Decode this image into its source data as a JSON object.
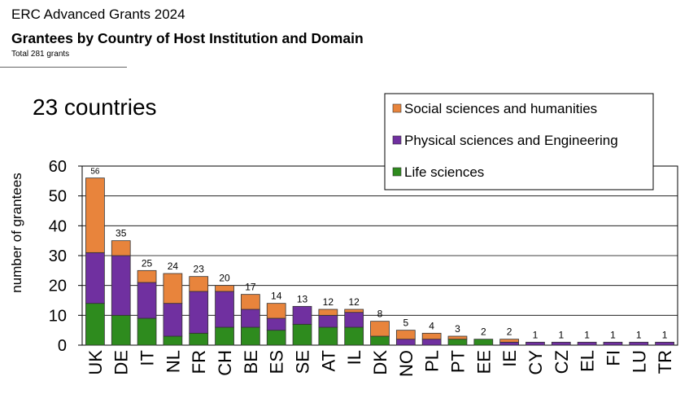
{
  "header": {
    "supertitle": "ERC Advanced Grants 2024",
    "title": "Grantees by Country of Host Institution and Domain",
    "subtitle": "Total 281 grants"
  },
  "annotation": "23 countries",
  "chart_data": {
    "type": "bar",
    "stacked": true,
    "ylabel": "number of grantees",
    "xlabel": "",
    "ylim": [
      0,
      60
    ],
    "yticks": [
      0,
      10,
      20,
      30,
      40,
      50,
      60
    ],
    "grid": true,
    "legend_position": "top-right",
    "categories": [
      "UK",
      "DE",
      "IT",
      "NL",
      "FR",
      "CH",
      "BE",
      "ES",
      "SE",
      "AT",
      "IL",
      "DK",
      "NO",
      "PL",
      "PT",
      "EE",
      "IE",
      "CY",
      "CZ",
      "EL",
      "FI",
      "LU",
      "TR"
    ],
    "totals": [
      56,
      35,
      25,
      24,
      23,
      20,
      17,
      14,
      13,
      12,
      12,
      8,
      5,
      4,
      3,
      2,
      2,
      1,
      1,
      1,
      1,
      1,
      1
    ],
    "series": [
      {
        "name": "Life sciences",
        "color": "#2e8b1e",
        "values": [
          14,
          10,
          9,
          3,
          4,
          6,
          6,
          5,
          7,
          6,
          6,
          3,
          0,
          0,
          2,
          2,
          0,
          0,
          0,
          0,
          0,
          0,
          0
        ]
      },
      {
        "name": "Physical sciences and Engineering",
        "color": "#7030a0",
        "values": [
          17,
          20,
          12,
          11,
          14,
          12,
          6,
          4,
          6,
          4,
          5,
          0,
          2,
          2,
          0,
          0,
          1,
          1,
          1,
          1,
          1,
          1,
          1
        ]
      },
      {
        "name": "Social sciences and humanities",
        "color": "#e8843c",
        "values": [
          25,
          5,
          4,
          10,
          5,
          2,
          5,
          5,
          0,
          2,
          1,
          5,
          3,
          2,
          1,
          0,
          1,
          0,
          0,
          0,
          0,
          0,
          0
        ]
      }
    ],
    "legend_order": [
      "Social sciences and humanities",
      "Physical sciences and Engineering",
      "Life sciences"
    ]
  }
}
